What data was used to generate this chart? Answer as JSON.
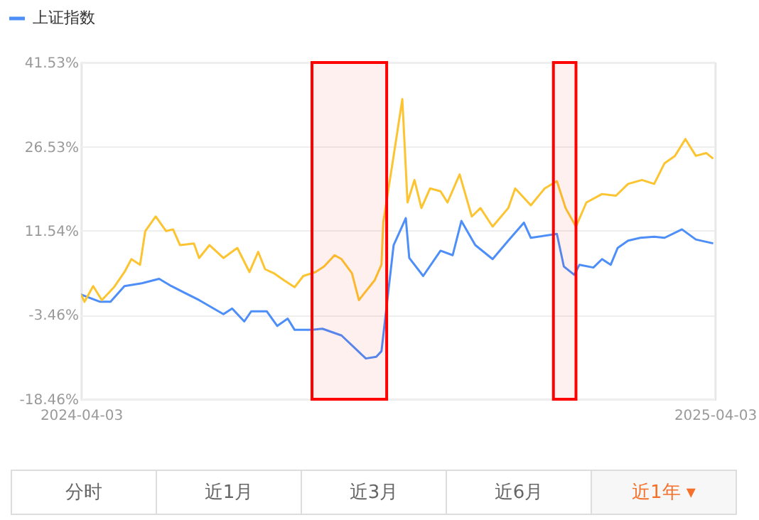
{
  "chart_data": {
    "type": "line",
    "xlim": [
      "2024-04-03",
      "2025-04-03"
    ],
    "xticks": [
      "2024-04-03",
      "2025-04-03"
    ],
    "ylim": [
      -18.46,
      41.53
    ],
    "yticks": [
      {
        "value": -18.46,
        "label": "-18.46%"
      },
      {
        "value": -3.46,
        "label": "-3.46%"
      },
      {
        "value": 11.54,
        "label": "11.54%"
      },
      {
        "value": 26.53,
        "label": "26.53%"
      },
      {
        "value": 41.53,
        "label": "41.53%"
      }
    ],
    "grid": "y",
    "legend": "top left",
    "series": [
      {
        "name": "上证指数",
        "color": "#4d8ef8",
        "x": [
          "2024-04-03",
          "2024-04-14",
          "2024-04-20",
          "2024-04-28",
          "2024-05-08",
          "2024-05-18",
          "2024-05-25",
          "2024-06-10",
          "2024-06-24",
          "2024-06-29",
          "2024-07-06",
          "2024-07-10",
          "2024-07-19",
          "2024-07-25",
          "2024-07-31",
          "2024-08-04",
          "2024-08-14",
          "2024-08-20",
          "2024-08-31",
          "2024-09-14",
          "2024-09-20",
          "2024-09-23",
          "2024-09-30",
          "2024-10-07",
          "2024-10-09",
          "2024-10-17",
          "2024-10-27",
          "2024-11-03",
          "2024-11-08",
          "2024-11-16",
          "2024-11-26",
          "2024-12-05",
          "2024-12-14",
          "2024-12-18",
          "2025-01-02",
          "2025-01-06",
          "2025-01-12",
          "2025-01-15",
          "2025-01-23",
          "2025-01-28",
          "2025-02-02",
          "2025-02-06",
          "2025-02-12",
          "2025-02-19",
          "2025-02-27",
          "2025-03-05",
          "2025-03-15",
          "2025-03-23",
          "2025-04-02"
        ],
        "values": [
          0.2,
          -1.1,
          -1.1,
          1.7,
          2.2,
          3.0,
          1.7,
          -0.8,
          -3.3,
          -2.3,
          -4.6,
          -2.8,
          -2.8,
          -5.4,
          -4.1,
          -6.1,
          -6.1,
          -5.9,
          -7.1,
          -11.2,
          -10.9,
          -9.9,
          9.0,
          13.8,
          6.7,
          3.5,
          8.0,
          7.2,
          13.3,
          9.0,
          6.5,
          9.8,
          13.0,
          10.3,
          11.0,
          5.2,
          3.7,
          5.5,
          5.0,
          6.5,
          5.5,
          8.5,
          9.8,
          10.3,
          10.5,
          10.3,
          11.8,
          10.0,
          9.3
        ]
      },
      {
        "color": "#fcc430",
        "x": [
          "2024-04-03",
          "2024-04-05",
          "2024-04-10",
          "2024-04-15",
          "2024-04-22",
          "2024-04-28",
          "2024-05-02",
          "2024-05-07",
          "2024-05-10",
          "2024-05-16",
          "2024-05-22",
          "2024-05-26",
          "2024-05-30",
          "2024-06-07",
          "2024-06-10",
          "2024-06-16",
          "2024-06-24",
          "2024-07-02",
          "2024-07-09",
          "2024-07-14",
          "2024-07-18",
          "2024-07-23",
          "2024-07-29",
          "2024-08-04",
          "2024-08-09",
          "2024-08-16",
          "2024-08-21",
          "2024-08-27",
          "2024-08-31",
          "2024-09-06",
          "2024-09-10",
          "2024-09-19",
          "2024-09-23",
          "2024-09-24",
          "2024-09-30",
          "2024-10-05",
          "2024-10-08",
          "2024-10-12",
          "2024-10-16",
          "2024-10-21",
          "2024-10-27",
          "2024-10-31",
          "2024-11-07",
          "2024-11-14",
          "2024-11-19",
          "2024-11-26",
          "2024-12-05",
          "2024-12-09",
          "2024-12-18",
          "2024-12-26",
          "2025-01-02",
          "2025-01-07",
          "2025-01-13",
          "2025-01-19",
          "2025-01-28",
          "2025-02-05",
          "2025-02-12",
          "2025-02-20",
          "2025-02-27",
          "2025-03-05",
          "2025-03-11",
          "2025-03-17",
          "2025-03-23",
          "2025-03-29",
          "2025-04-02"
        ],
        "values": [
          0.2,
          -1.1,
          1.7,
          -0.8,
          1.5,
          4.2,
          6.5,
          5.5,
          11.5,
          14.1,
          11.5,
          11.8,
          9.0,
          9.3,
          6.7,
          9.0,
          6.7,
          8.5,
          4.2,
          7.8,
          4.7,
          4.0,
          2.7,
          1.5,
          3.5,
          4.2,
          5.2,
          7.2,
          6.5,
          4.0,
          -0.8,
          2.7,
          5.5,
          13.0,
          24.9,
          35.0,
          16.6,
          20.6,
          15.6,
          19.1,
          18.6,
          16.6,
          21.6,
          14.1,
          15.6,
          12.3,
          15.6,
          19.1,
          16.1,
          19.1,
          20.4,
          15.6,
          12.3,
          16.6,
          18.1,
          17.8,
          19.9,
          20.6,
          19.9,
          23.6,
          24.9,
          27.9,
          24.9,
          25.4,
          24.4
        ]
      }
    ],
    "bands": [
      {
        "axis": "x",
        "from": "2024-08-14",
        "to": "2024-09-26",
        "color": "#ff0000"
      },
      {
        "axis": "x",
        "from": "2024-12-31",
        "to": "2025-01-13",
        "color": "#ff0000"
      }
    ],
    "annotations": [
      "分时",
      "近1月",
      "近3月",
      "近6月",
      "近1年 ▾"
    ]
  }
}
